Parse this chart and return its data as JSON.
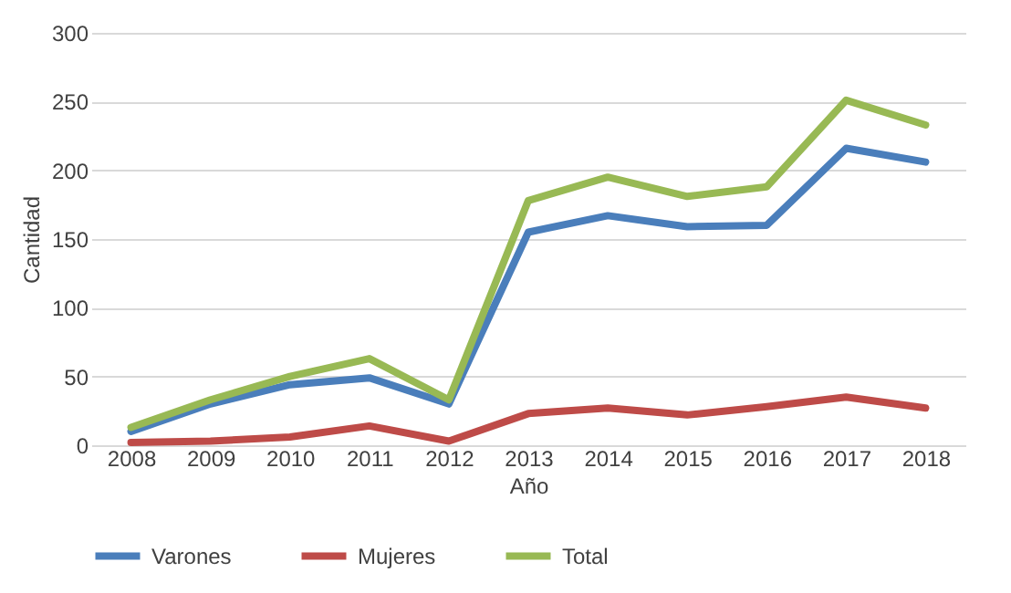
{
  "chart_data": {
    "type": "line",
    "xlabel": "Año",
    "ylabel": "Cantidad",
    "categories": [
      "2008",
      "2009",
      "2010",
      "2011",
      "2012",
      "2013",
      "2014",
      "2015",
      "2016",
      "2017",
      "2018"
    ],
    "series": [
      {
        "name": "Varones",
        "color": "#4a7ebb",
        "values": [
          10,
          30,
          44,
          49,
          30,
          155,
          167,
          159,
          160,
          216,
          206
        ]
      },
      {
        "name": "Mujeres",
        "color": "#be4b48",
        "values": [
          2,
          3,
          6,
          14,
          3,
          23,
          27,
          22,
          28,
          35,
          27
        ]
      },
      {
        "name": "Total",
        "color": "#98b954",
        "values": [
          13,
          33,
          50,
          63,
          33,
          178,
          195,
          181,
          188,
          251,
          233
        ]
      }
    ],
    "ylim": [
      0,
      300
    ],
    "yticks": [
      0,
      50,
      100,
      150,
      200,
      250,
      300
    ],
    "grid": "y",
    "legend": "bottom",
    "marker": "none",
    "line_style": "solid"
  }
}
